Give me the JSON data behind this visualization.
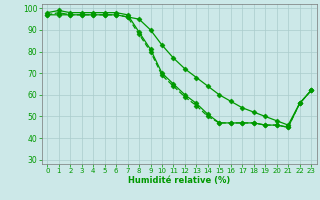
{
  "xlabel": "Humidité relative (%)",
  "bg_color": "#cce8e8",
  "grid_color": "#aacccc",
  "line_color": "#009900",
  "ylim": [
    28,
    102
  ],
  "xlim": [
    -0.5,
    23.5
  ],
  "yticks": [
    30,
    40,
    50,
    60,
    70,
    80,
    90,
    100
  ],
  "xticks": [
    0,
    1,
    2,
    3,
    4,
    5,
    6,
    7,
    8,
    9,
    10,
    11,
    12,
    13,
    14,
    15,
    16,
    17,
    18,
    19,
    20,
    21,
    22,
    23
  ],
  "line1_x": [
    0,
    1,
    2,
    3,
    4,
    5,
    6,
    7,
    8,
    9,
    10,
    11,
    12,
    13,
    14,
    15,
    16,
    17,
    18,
    19,
    20,
    21,
    22,
    23
  ],
  "line1_y": [
    98,
    99,
    98,
    98,
    98,
    98,
    98,
    97,
    89,
    81,
    70,
    65,
    60,
    56,
    51,
    47,
    47,
    47,
    47,
    46,
    46,
    45,
    56,
    62
  ],
  "line2_x": [
    0,
    1,
    2,
    3,
    4,
    5,
    6,
    7,
    8,
    9,
    10,
    11,
    12,
    13,
    14,
    15,
    16,
    17,
    18,
    19,
    20,
    21,
    22,
    23
  ],
  "line2_y": [
    97,
    98,
    97,
    97,
    97,
    97,
    97,
    96,
    88,
    80,
    69,
    64,
    59,
    55,
    50,
    47,
    47,
    47,
    47,
    46,
    46,
    45,
    56,
    62
  ],
  "line3_x": [
    0,
    1,
    2,
    3,
    4,
    5,
    6,
    7,
    8,
    9,
    10,
    11,
    12,
    13,
    14,
    15,
    16,
    17,
    18,
    19,
    20,
    21,
    22,
    23
  ],
  "line3_y": [
    97,
    97,
    97,
    97,
    97,
    97,
    97,
    96,
    95,
    90,
    83,
    77,
    72,
    68,
    64,
    60,
    57,
    54,
    52,
    50,
    48,
    46,
    56,
    62
  ]
}
